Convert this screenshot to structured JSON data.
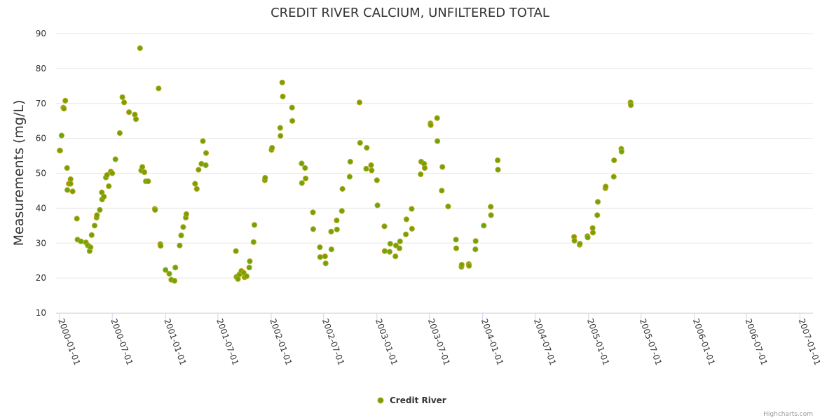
{
  "chart_data": {
    "type": "scatter",
    "title": "CREDIT RIVER CALCIUM, UNFILTERED TOTAL",
    "ylabel": "Measurements (mg/L)",
    "xlabel": "",
    "ylim": [
      10,
      90
    ],
    "yticks": [
      10,
      20,
      30,
      40,
      50,
      60,
      70,
      80,
      90
    ],
    "xlim": [
      "1999-12-20",
      "2007-02-15"
    ],
    "xticks": [
      "2000-01-01",
      "2000-07-01",
      "2001-01-01",
      "2001-07-01",
      "2002-01-01",
      "2002-07-01",
      "2003-01-01",
      "2003-07-01",
      "2004-01-01",
      "2004-07-01",
      "2005-01-01",
      "2005-07-01",
      "2006-01-01",
      "2006-07-01",
      "2007-01-01"
    ],
    "grid": "horizontal",
    "legend_position": "bottom-center",
    "colors": {
      "point_fill": "#6aa608",
      "point_stroke": "#c8a21f",
      "text": "#333333",
      "grid": "#e6e6e6",
      "axis": "#ccd6eb"
    },
    "series": [
      {
        "name": "Credit River",
        "points": [
          [
            "2000-01-01",
            56.5
          ],
          [
            "2000-01-03",
            56.5
          ],
          [
            "2000-01-08",
            60.8
          ],
          [
            "2000-01-14",
            68.8
          ],
          [
            "2000-01-16",
            68.5
          ],
          [
            "2000-01-21",
            70.8
          ],
          [
            "2000-01-27",
            51.5
          ],
          [
            "2000-01-28",
            45.2
          ],
          [
            "2000-02-02",
            47.0
          ],
          [
            "2000-02-08",
            48.3
          ],
          [
            "2000-02-08",
            47.0
          ],
          [
            "2000-02-15",
            44.8
          ],
          [
            "2000-03-01",
            37.0
          ],
          [
            "2000-03-03",
            31.0
          ],
          [
            "2000-03-15",
            30.5
          ],
          [
            "2000-04-01",
            30.2
          ],
          [
            "2000-04-08",
            29.3
          ],
          [
            "2000-04-14",
            27.7
          ],
          [
            "2000-04-17",
            28.8
          ],
          [
            "2000-04-21",
            32.3
          ],
          [
            "2000-05-01",
            35.0
          ],
          [
            "2000-05-08",
            37.3
          ],
          [
            "2000-05-09",
            38.0
          ],
          [
            "2000-05-19",
            39.5
          ],
          [
            "2000-05-26",
            44.5
          ],
          [
            "2000-05-27",
            42.5
          ],
          [
            "2000-06-02",
            43.3
          ],
          [
            "2000-06-09",
            48.8
          ],
          [
            "2000-06-13",
            49.5
          ],
          [
            "2000-06-19",
            46.3
          ],
          [
            "2000-06-26",
            50.5
          ],
          [
            "2000-07-01",
            50.0
          ],
          [
            "2000-07-12",
            54.0
          ],
          [
            "2000-07-27",
            61.5
          ],
          [
            "2000-08-05",
            71.8
          ],
          [
            "2000-08-11",
            70.3
          ],
          [
            "2000-08-28",
            67.5
          ],
          [
            "2000-09-17",
            66.8
          ],
          [
            "2000-09-21",
            65.5
          ],
          [
            "2000-10-05",
            85.8
          ],
          [
            "2000-10-09",
            50.8
          ],
          [
            "2000-10-13",
            51.8
          ],
          [
            "2000-10-20",
            50.3
          ],
          [
            "2000-10-25",
            47.7
          ],
          [
            "2000-11-02",
            47.7
          ],
          [
            "2000-11-25",
            39.8
          ],
          [
            "2000-11-26",
            39.5
          ],
          [
            "2000-12-08",
            74.3
          ],
          [
            "2000-12-14",
            29.7
          ],
          [
            "2000-12-15",
            29.2
          ],
          [
            "2001-01-01",
            22.3
          ],
          [
            "2001-01-14",
            21.2
          ],
          [
            "2001-01-21",
            19.5
          ],
          [
            "2001-02-01",
            19.2
          ],
          [
            "2001-02-04",
            23.0
          ],
          [
            "2001-02-19",
            29.3
          ],
          [
            "2001-02-24",
            32.2
          ],
          [
            "2001-03-03",
            34.6
          ],
          [
            "2001-03-12",
            37.3
          ],
          [
            "2001-03-14",
            38.3
          ],
          [
            "2001-04-13",
            47.0
          ],
          [
            "2001-04-19",
            45.5
          ],
          [
            "2001-04-25",
            51.0
          ],
          [
            "2001-05-05",
            52.7
          ],
          [
            "2001-05-10",
            59.2
          ],
          [
            "2001-05-20",
            52.3
          ],
          [
            "2001-05-21",
            55.8
          ],
          [
            "2001-09-01",
            27.7
          ],
          [
            "2001-09-03",
            20.3
          ],
          [
            "2001-09-08",
            19.7
          ],
          [
            "2001-09-13",
            21.0
          ],
          [
            "2001-09-20",
            22.0
          ],
          [
            "2001-09-28",
            21.5
          ],
          [
            "2001-10-01",
            20.2
          ],
          [
            "2001-10-08",
            20.5
          ],
          [
            "2001-10-17",
            23.0
          ],
          [
            "2001-10-19",
            24.8
          ],
          [
            "2001-11-01",
            30.3
          ],
          [
            "2001-11-04",
            35.2
          ],
          [
            "2001-12-10",
            48.0
          ],
          [
            "2001-12-11",
            48.7
          ],
          [
            "2002-01-02",
            56.7
          ],
          [
            "2002-01-04",
            57.3
          ],
          [
            "2002-02-01",
            63.0
          ],
          [
            "2002-02-02",
            60.7
          ],
          [
            "2002-02-08",
            76.0
          ],
          [
            "2002-02-10",
            72.0
          ],
          [
            "2002-03-14",
            68.8
          ],
          [
            "2002-03-15",
            65.0
          ],
          [
            "2002-04-16",
            52.8
          ],
          [
            "2002-04-17",
            47.2
          ],
          [
            "2002-04-28",
            51.5
          ],
          [
            "2002-04-30",
            48.5
          ],
          [
            "2002-05-25",
            38.8
          ],
          [
            "2002-05-26",
            34.0
          ],
          [
            "2002-06-18",
            28.8
          ],
          [
            "2002-06-19",
            26.0
          ],
          [
            "2002-07-06",
            26.2
          ],
          [
            "2002-07-08",
            24.2
          ],
          [
            "2002-07-27",
            33.3
          ],
          [
            "2002-07-28",
            28.2
          ],
          [
            "2002-08-15",
            36.5
          ],
          [
            "2002-08-16",
            33.9
          ],
          [
            "2002-09-02",
            39.2
          ],
          [
            "2002-09-04",
            45.5
          ],
          [
            "2002-09-29",
            49.0
          ],
          [
            "2002-10-01",
            53.3
          ],
          [
            "2002-11-02",
            70.3
          ],
          [
            "2002-11-04",
            58.7
          ],
          [
            "2002-11-25",
            51.3
          ],
          [
            "2002-11-27",
            57.3
          ],
          [
            "2002-12-12",
            52.3
          ],
          [
            "2002-12-14",
            50.8
          ],
          [
            "2003-01-01",
            48.0
          ],
          [
            "2003-01-03",
            40.8
          ],
          [
            "2003-01-27",
            34.8
          ],
          [
            "2003-01-28",
            27.7
          ],
          [
            "2003-02-14",
            27.5
          ],
          [
            "2003-02-16",
            29.8
          ],
          [
            "2003-03-06",
            26.2
          ],
          [
            "2003-03-08",
            29.3
          ],
          [
            "2003-03-20",
            28.5
          ],
          [
            "2003-03-22",
            30.5
          ],
          [
            "2003-04-11",
            32.5
          ],
          [
            "2003-04-13",
            36.8
          ],
          [
            "2003-05-01",
            39.8
          ],
          [
            "2003-05-02",
            34.1
          ],
          [
            "2003-06-01",
            49.7
          ],
          [
            "2003-06-03",
            53.3
          ],
          [
            "2003-06-13",
            52.7
          ],
          [
            "2003-06-15",
            51.5
          ],
          [
            "2003-07-05",
            64.3
          ],
          [
            "2003-07-06",
            63.8
          ],
          [
            "2003-07-28",
            65.8
          ],
          [
            "2003-07-29",
            59.2
          ],
          [
            "2003-08-13",
            45.0
          ],
          [
            "2003-08-15",
            51.8
          ],
          [
            "2003-09-04",
            40.5
          ],
          [
            "2003-10-01",
            31.0
          ],
          [
            "2003-10-02",
            28.5
          ],
          [
            "2003-10-20",
            23.2
          ],
          [
            "2003-10-21",
            23.8
          ],
          [
            "2003-11-14",
            24.0
          ],
          [
            "2003-11-15",
            23.5
          ],
          [
            "2003-12-07",
            28.2
          ],
          [
            "2003-12-08",
            30.6
          ],
          [
            "2004-01-05",
            35.0
          ],
          [
            "2004-01-29",
            40.4
          ],
          [
            "2004-01-30",
            38.0
          ],
          [
            "2004-02-22",
            53.7
          ],
          [
            "2004-02-23",
            51.0
          ],
          [
            "2004-11-12",
            31.8
          ],
          [
            "2004-11-13",
            30.7
          ],
          [
            "2004-12-01",
            29.5
          ],
          [
            "2004-12-02",
            29.8
          ],
          [
            "2004-12-28",
            32.0
          ],
          [
            "2004-12-29",
            31.6
          ],
          [
            "2005-01-15",
            34.3
          ],
          [
            "2005-01-16",
            33.0
          ],
          [
            "2005-01-31",
            38.0
          ],
          [
            "2005-02-02",
            41.8
          ],
          [
            "2005-02-28",
            45.7
          ],
          [
            "2005-03-01",
            46.2
          ],
          [
            "2005-03-29",
            49.0
          ],
          [
            "2005-03-30",
            53.7
          ],
          [
            "2005-04-24",
            57.0
          ],
          [
            "2005-04-25",
            56.2
          ],
          [
            "2005-05-26",
            70.3
          ],
          [
            "2005-05-27",
            69.5
          ]
        ]
      }
    ]
  },
  "legend": {
    "label": "Credit River"
  },
  "credits": {
    "label": "Highcharts.com"
  }
}
